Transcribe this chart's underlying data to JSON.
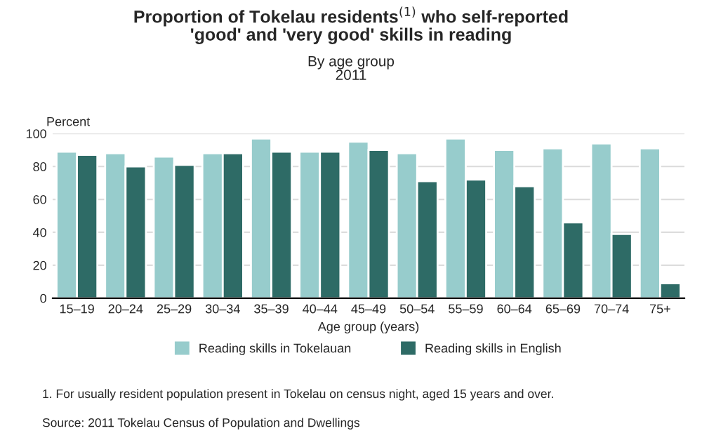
{
  "chart_data": {
    "type": "bar",
    "title": "Proportion of Tokelau residents$^{(1)}$ who self-reported\n'good' and 'very good' skills in reading",
    "subtitle": "By age group\n2011",
    "ylabel": "Percent",
    "xlabel": "Age group (years)",
    "categories": [
      "15–19",
      "20–24",
      "25–29",
      "30–34",
      "35–39",
      "40–44",
      "45–49",
      "50–54",
      "55–59",
      "60–64",
      "65–69",
      "70–74",
      "75+"
    ],
    "series": [
      {
        "name": "Reading skills in Tokelauan",
        "color": "#97cccc",
        "values": [
          89,
          88,
          86,
          88,
          97,
          89,
          95,
          88,
          97,
          90,
          91,
          94,
          91
        ]
      },
      {
        "name": "Reading skills in English",
        "color": "#2e6b66",
        "values": [
          87,
          80,
          81,
          88,
          89,
          89,
          90,
          71,
          72,
          68,
          46,
          39,
          9
        ]
      }
    ],
    "ylim": [
      0,
      100
    ],
    "yticks": [
      0,
      20,
      40,
      60,
      80,
      100
    ],
    "grid": "y",
    "legend": "bottom",
    "annotations": [
      "1. For usually resident population present in Tokelau on census night, aged 15 years and over.",
      "Source: 2011 Tokelau Census of Population and Dwellings"
    ]
  }
}
